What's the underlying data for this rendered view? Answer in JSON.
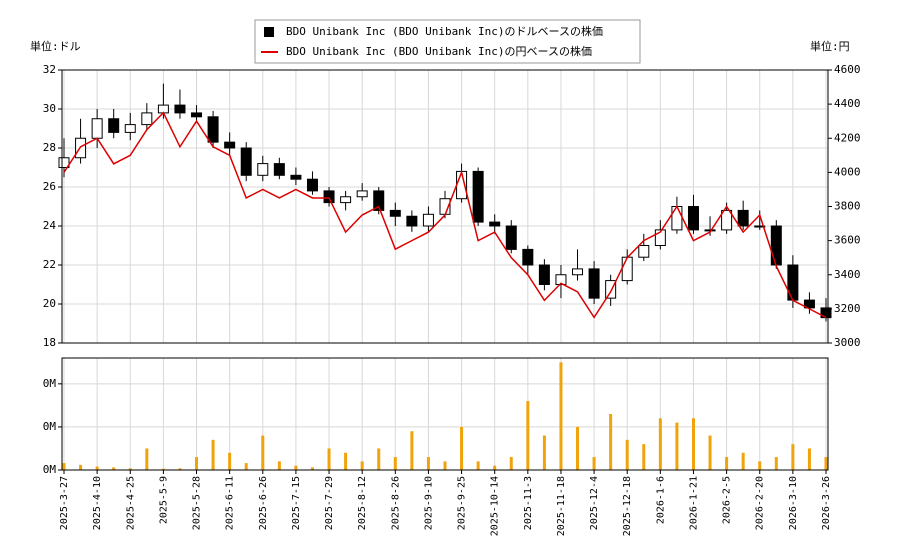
{
  "chart_data": [
    {
      "type": "candlestick",
      "ylabel": "単位:ドル",
      "y2label": "単位:円",
      "ylim": [
        18,
        32
      ],
      "yticks": [
        18,
        20,
        22,
        24,
        26,
        28,
        30,
        32
      ],
      "y2lim": [
        3000,
        4600
      ],
      "y2ticks": [
        3000,
        3200,
        3400,
        3600,
        3800,
        4000,
        4200,
        4400,
        4600
      ],
      "grid": true,
      "series": [
        {
          "name": "BDO Unibank Inc (BDO Unibank Inc)のドルベースの株価",
          "color": "#000000",
          "open": [
            27.0,
            27.5,
            28.5,
            29.5,
            28.8,
            29.2,
            29.8,
            30.2,
            29.8,
            29.6,
            28.3,
            28.0,
            26.6,
            27.2,
            26.6,
            26.4,
            25.8,
            25.2,
            25.5,
            25.8,
            24.8,
            24.5,
            24.0,
            24.6,
            25.4,
            26.8,
            24.2,
            24.0,
            22.8,
            22.0,
            21.0,
            21.5,
            21.8,
            20.3,
            21.2,
            22.4,
            23.0,
            23.8,
            25.0,
            23.8,
            23.8,
            24.8,
            24.0,
            24.0,
            22.0,
            20.2,
            19.8
          ],
          "high": [
            28.5,
            29.5,
            30.0,
            30.0,
            29.8,
            30.3,
            31.3,
            31.0,
            30.2,
            29.9,
            28.8,
            28.3,
            27.6,
            27.5,
            27.0,
            26.8,
            26.0,
            25.8,
            26.2,
            26.0,
            25.2,
            24.8,
            25.0,
            25.8,
            27.2,
            27.0,
            24.6,
            24.3,
            23.0,
            22.3,
            22.0,
            22.8,
            22.2,
            21.5,
            22.8,
            23.6,
            24.3,
            25.5,
            25.6,
            24.5,
            25.2,
            25.3,
            24.8,
            24.3,
            22.5,
            20.6,
            20.3
          ],
          "low": [
            26.5,
            27.2,
            28.0,
            28.5,
            28.4,
            28.9,
            29.5,
            29.5,
            29.3,
            28.0,
            27.6,
            26.3,
            26.3,
            26.4,
            26.1,
            25.6,
            25.0,
            24.8,
            25.3,
            24.6,
            24.0,
            23.7,
            23.7,
            24.4,
            25.2,
            24.0,
            23.6,
            22.6,
            21.5,
            20.7,
            20.3,
            21.2,
            20.0,
            19.9,
            21.0,
            22.2,
            22.8,
            23.6,
            23.6,
            23.5,
            23.6,
            23.8,
            23.8,
            21.8,
            19.8,
            19.5,
            19.1
          ],
          "close": [
            27.5,
            28.5,
            29.5,
            28.8,
            29.2,
            29.8,
            30.2,
            29.8,
            29.6,
            28.3,
            28.0,
            26.6,
            27.2,
            26.6,
            26.4,
            25.8,
            25.2,
            25.5,
            25.8,
            24.8,
            24.5,
            24.0,
            24.6,
            25.4,
            26.8,
            24.2,
            24.0,
            22.8,
            22.0,
            21.0,
            21.5,
            21.8,
            20.3,
            21.2,
            22.4,
            23.0,
            23.8,
            25.0,
            23.8,
            23.8,
            24.8,
            24.0,
            24.0,
            22.0,
            20.2,
            19.8,
            19.3
          ]
        },
        {
          "name": "BDO Unibank Inc (BDO Unibank Inc)の円ベースの株価",
          "color": "#dd0000",
          "axis": "y2",
          "values": [
            4000,
            4150,
            4200,
            4050,
            4100,
            4250,
            4350,
            4150,
            4300,
            4150,
            4100,
            3850,
            3900,
            3850,
            3900,
            3850,
            3850,
            3650,
            3750,
            3800,
            3550,
            3600,
            3650,
            3750,
            4000,
            3600,
            3650,
            3500,
            3400,
            3250,
            3350,
            3300,
            3150,
            3300,
            3500,
            3600,
            3650,
            3800,
            3600,
            3650,
            3800,
            3650,
            3750,
            3450,
            3250,
            3200,
            3150
          ]
        }
      ]
    },
    {
      "type": "bar",
      "color": "#f0a30a",
      "categories": [
        "2025-3-27",
        null,
        "2025-4-10",
        null,
        "2025-4-25",
        null,
        "2025-5-9",
        null,
        "2025-5-28",
        null,
        "2025-6-11",
        null,
        "2025-6-26",
        null,
        "2025-7-15",
        null,
        "2025-7-29",
        null,
        "2025-8-12",
        null,
        "2025-8-26",
        null,
        "2025-9-10",
        null,
        "2025-9-25",
        null,
        "2025-10-14",
        null,
        "2025-11-3",
        null,
        "2025-11-18",
        null,
        "2025-12-4",
        null,
        "2025-12-18",
        null,
        "2026-1-6",
        null,
        "2026-1-21",
        null,
        "2026-2-5",
        null,
        "2026-2-20",
        null,
        "2026-3-10",
        null,
        "2026-3-26"
      ],
      "values": [
        800,
        600,
        400,
        300,
        200,
        2500,
        150,
        200,
        1500,
        3500,
        2000,
        800,
        4000,
        1000,
        500,
        300,
        2500,
        2000,
        1000,
        2500,
        1500,
        4500,
        1500,
        1000,
        5000,
        1000,
        500,
        1500,
        8000,
        4000,
        12500,
        5000,
        1500,
        6500,
        3500,
        3000,
        6000,
        5500,
        6000,
        4000,
        1500,
        2000,
        1000,
        1500,
        3000,
        2500,
        1500
      ],
      "ylim": [
        0,
        13000
      ],
      "yticks": [
        {
          "value": 0,
          "label": "0M"
        },
        {
          "value": 5000,
          "label": "0M"
        },
        {
          "value": 10000,
          "label": "0M"
        }
      ],
      "grid": true
    }
  ]
}
